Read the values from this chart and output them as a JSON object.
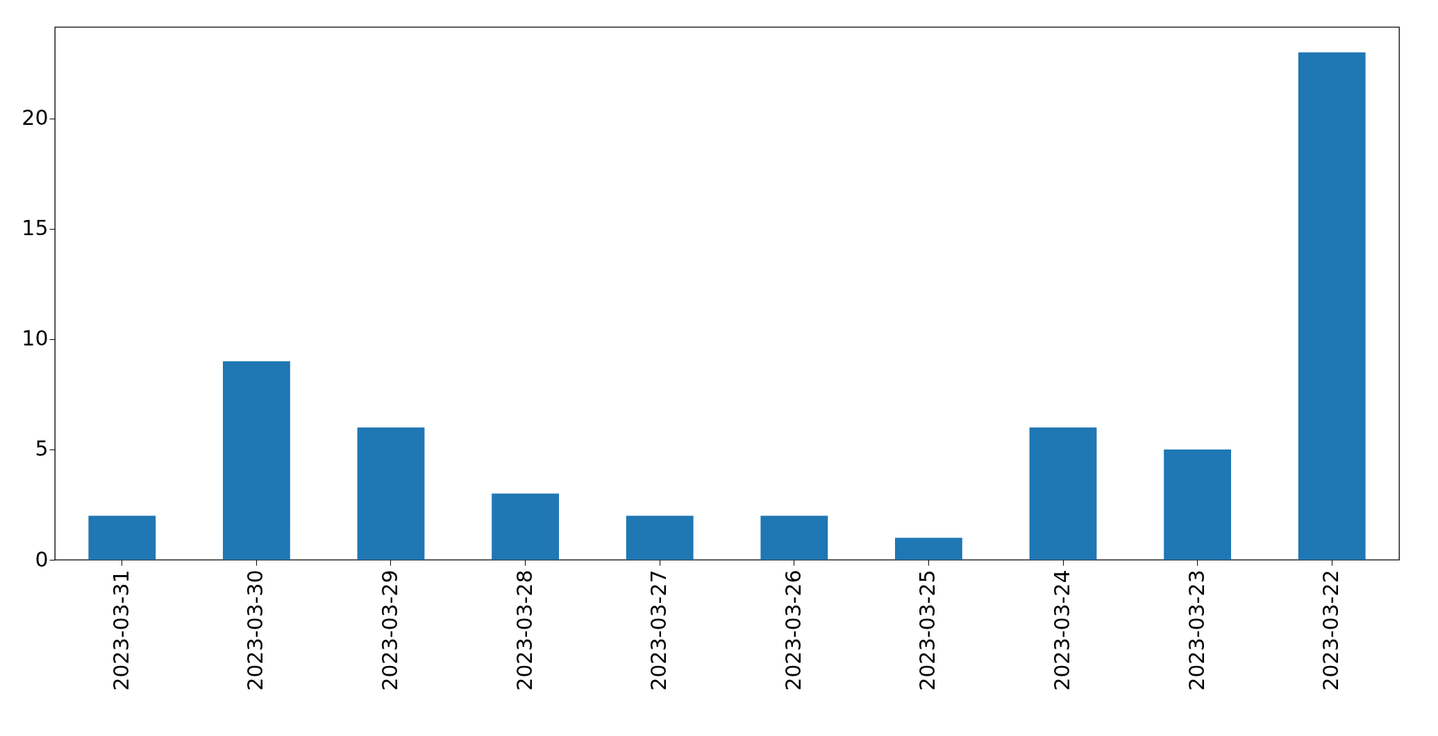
{
  "chart_data": {
    "type": "bar",
    "categories": [
      "2023-03-31",
      "2023-03-30",
      "2023-03-29",
      "2023-03-28",
      "2023-03-27",
      "2023-03-26",
      "2023-03-25",
      "2023-03-24",
      "2023-03-23",
      "2023-03-22"
    ],
    "values": [
      2,
      9,
      6,
      3,
      2,
      2,
      1,
      6,
      5,
      23
    ],
    "color": "#1f77b4",
    "ylim": [
      0,
      24.15
    ],
    "yticks": [
      0,
      5,
      10,
      15,
      20
    ],
    "grid": false
  }
}
